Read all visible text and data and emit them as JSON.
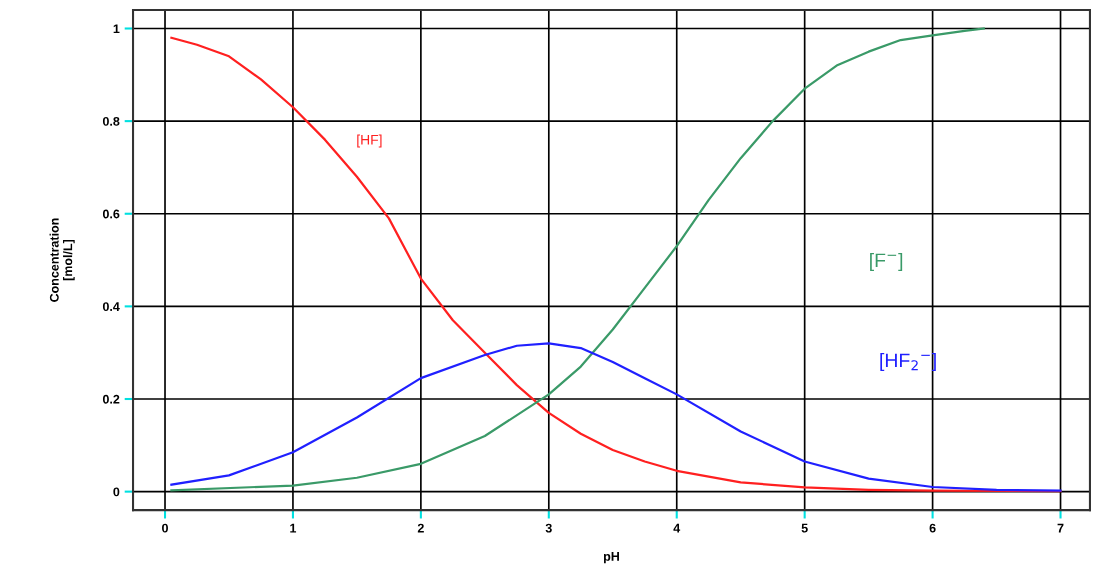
{
  "chart_data": {
    "type": "line",
    "xlabel": "pH",
    "ylabel": "Concentration\n[mol/L]",
    "xlim": [
      -0.25,
      7.23
    ],
    "ylim": [
      -0.04,
      1.04
    ],
    "xticks": [
      0,
      1,
      2,
      3,
      4,
      5,
      6,
      7
    ],
    "yticks": [
      0,
      {
        "value": 0.2,
        "label": "0.2"
      },
      {
        "value": 0.4,
        "label": "0.4"
      },
      {
        "value": 0.6,
        "label": "0.6"
      },
      {
        "value": 0.8,
        "label": "0.8"
      },
      1
    ],
    "grid": true,
    "marker": "none",
    "line_style": "solid",
    "series": [
      {
        "name": "[HF]",
        "color": "#ff2020",
        "x": [
          0.05,
          0.25,
          0.5,
          0.75,
          1.0,
          1.25,
          1.5,
          1.75,
          2.0,
          2.25,
          2.5,
          2.75,
          3.0,
          3.25,
          3.5,
          3.75,
          4.0,
          4.5,
          5.0,
          5.5,
          6.0,
          7.0
        ],
        "values": [
          0.98,
          0.965,
          0.94,
          0.89,
          0.83,
          0.76,
          0.68,
          0.59,
          0.46,
          0.37,
          0.3,
          0.23,
          0.17,
          0.125,
          0.09,
          0.065,
          0.045,
          0.02,
          0.009,
          0.004,
          0.002,
          0.001
        ]
      },
      {
        "name": "[F$^{−}$]",
        "color": "#3a9a68",
        "x": [
          0.05,
          1.0,
          1.5,
          2.0,
          2.5,
          3.0,
          3.25,
          3.5,
          3.75,
          4.0,
          4.25,
          4.5,
          4.75,
          5.0,
          5.25,
          5.5,
          5.75,
          6.0,
          6.25,
          6.4
        ],
        "values": [
          0.003,
          0.013,
          0.03,
          0.06,
          0.12,
          0.21,
          0.27,
          0.35,
          0.44,
          0.53,
          0.63,
          0.72,
          0.8,
          0.87,
          0.92,
          0.95,
          0.975,
          0.985,
          0.995,
          1.0
        ]
      },
      {
        "name": "[HF$_{2}$$^{−}$]",
        "color": "#2020ff",
        "x": [
          0.05,
          0.5,
          1.0,
          1.5,
          2.0,
          2.5,
          2.75,
          3.0,
          3.25,
          3.5,
          3.75,
          4.0,
          4.5,
          5.0,
          5.5,
          6.0,
          6.5,
          7.0
        ],
        "values": [
          0.015,
          0.035,
          0.085,
          0.16,
          0.245,
          0.295,
          0.315,
          0.32,
          0.31,
          0.28,
          0.245,
          0.21,
          0.13,
          0.065,
          0.028,
          0.01,
          0.004,
          0.002
        ]
      }
    ]
  }
}
